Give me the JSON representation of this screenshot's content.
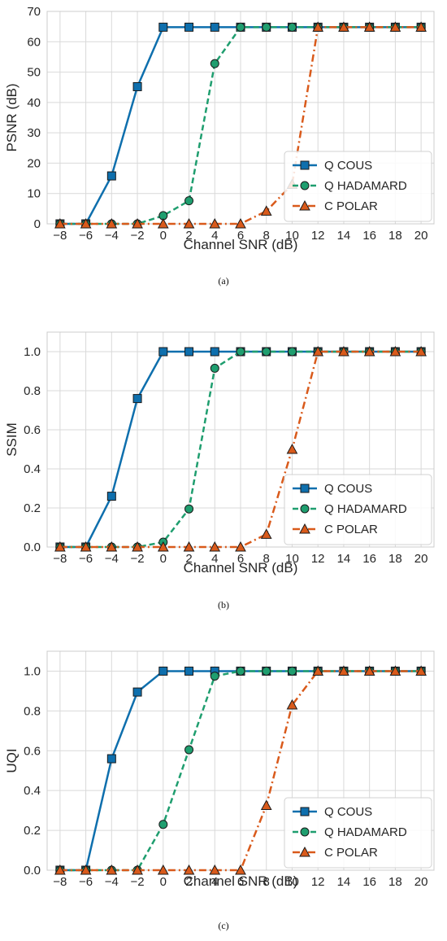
{
  "chart_data": [
    {
      "type": "line",
      "caption": "(a)",
      "xlabel": "Channel SNR (dB)",
      "ylabel": "PSNR (dB)",
      "x": [
        -8,
        -6,
        -4,
        -2,
        0,
        2,
        4,
        6,
        8,
        10,
        12,
        14,
        16,
        18,
        20
      ],
      "xticks": [
        "−8",
        "−6",
        "−4",
        "−2",
        "0",
        "2",
        "4",
        "6",
        "8",
        "10",
        "12",
        "14",
        "16",
        "18",
        "20"
      ],
      "ylim": [
        0,
        70
      ],
      "yticks": [
        0,
        10,
        20,
        30,
        40,
        50,
        60,
        70
      ],
      "ytick_labels": [
        "0",
        "10",
        "20",
        "30",
        "40",
        "50",
        "60",
        "70"
      ],
      "grid": true,
      "legend_position": "lower-right",
      "series": [
        {
          "name": "Q COUS",
          "color": "#0e6fad",
          "style": "solid",
          "marker": "square",
          "values": [
            0,
            0,
            15.8,
            45.2,
            64.8,
            64.8,
            64.8,
            64.8,
            64.8,
            64.8,
            64.8,
            64.8,
            64.8,
            64.8,
            64.8
          ]
        },
        {
          "name": "Q HADAMARD",
          "color": "#1f9e6f",
          "style": "dashed",
          "marker": "circle",
          "values": [
            0,
            0,
            0,
            0,
            2.7,
            7.6,
            52.8,
            64.8,
            64.8,
            64.8,
            64.8,
            64.8,
            64.8,
            64.8,
            64.8
          ]
        },
        {
          "name": "C POLAR",
          "color": "#d95a1b",
          "style": "dashdot",
          "marker": "triangle",
          "values": [
            0,
            0,
            0,
            0,
            0,
            0,
            0,
            0,
            4.2,
            13.0,
            64.8,
            64.8,
            64.8,
            64.8,
            64.8
          ]
        }
      ]
    },
    {
      "type": "line",
      "caption": "(b)",
      "xlabel": "Channel SNR (dB)",
      "ylabel": "SSIM",
      "x": [
        -8,
        -6,
        -4,
        -2,
        0,
        2,
        4,
        6,
        8,
        10,
        12,
        14,
        16,
        18,
        20
      ],
      "xticks": [
        "−8",
        "−6",
        "−4",
        "−2",
        "0",
        "2",
        "4",
        "6",
        "8",
        "10",
        "12",
        "14",
        "16",
        "18",
        "20"
      ],
      "ylim": [
        0,
        1.1
      ],
      "yticks": [
        0,
        0.2,
        0.4,
        0.6,
        0.8,
        1.0
      ],
      "ytick_labels": [
        "0.0",
        "0.2",
        "0.4",
        "0.6",
        "0.8",
        "1.0"
      ],
      "grid": true,
      "legend_position": "lower-right",
      "series": [
        {
          "name": "Q COUS",
          "color": "#0e6fad",
          "style": "solid",
          "marker": "square",
          "values": [
            0,
            0,
            0.26,
            0.76,
            1.0,
            1.0,
            1.0,
            1.0,
            1.0,
            1.0,
            1.0,
            1.0,
            1.0,
            1.0,
            1.0
          ]
        },
        {
          "name": "Q HADAMARD",
          "color": "#1f9e6f",
          "style": "dashed",
          "marker": "circle",
          "values": [
            0,
            0,
            0,
            0,
            0.025,
            0.195,
            0.915,
            1.0,
            1.0,
            1.0,
            1.0,
            1.0,
            1.0,
            1.0,
            1.0
          ]
        },
        {
          "name": "C POLAR",
          "color": "#d95a1b",
          "style": "dashdot",
          "marker": "triangle",
          "values": [
            0,
            0,
            0,
            0,
            0,
            0,
            0,
            0,
            0.065,
            0.5,
            1.0,
            1.0,
            1.0,
            1.0,
            1.0
          ]
        }
      ]
    },
    {
      "type": "line",
      "caption": "(c)",
      "xlabel": "Channel SNR (dB)",
      "ylabel": "UQI",
      "x": [
        -8,
        -6,
        -4,
        -2,
        0,
        2,
        4,
        6,
        8,
        10,
        12,
        14,
        16,
        18,
        20
      ],
      "xticks": [
        "−8",
        "−6",
        "−4",
        "−2",
        "0",
        "2",
        "4",
        "6",
        "8",
        "10",
        "12",
        "14",
        "16",
        "18",
        "20"
      ],
      "ylim": [
        0,
        1.1
      ],
      "yticks": [
        0,
        0.2,
        0.4,
        0.6,
        0.8,
        1.0
      ],
      "ytick_labels": [
        "0.0",
        "0.2",
        "0.4",
        "0.6",
        "0.8",
        "1.0"
      ],
      "grid": true,
      "legend_position": "lower-right",
      "series": [
        {
          "name": "Q COUS",
          "color": "#0e6fad",
          "style": "solid",
          "marker": "square",
          "values": [
            0,
            0,
            0.56,
            0.895,
            1.0,
            1.0,
            1.0,
            1.0,
            1.0,
            1.0,
            1.0,
            1.0,
            1.0,
            1.0,
            1.0
          ]
        },
        {
          "name": "Q HADAMARD",
          "color": "#1f9e6f",
          "style": "dashed",
          "marker": "circle",
          "values": [
            0,
            0,
            0,
            0,
            0.23,
            0.605,
            0.975,
            1.0,
            1.0,
            1.0,
            1.0,
            1.0,
            1.0,
            1.0,
            1.0
          ]
        },
        {
          "name": "C POLAR",
          "color": "#d95a1b",
          "style": "dashdot",
          "marker": "triangle",
          "values": [
            0,
            0,
            0,
            0,
            0,
            0,
            0,
            0,
            0.325,
            0.83,
            1.0,
            1.0,
            1.0,
            1.0,
            1.0
          ]
        }
      ]
    }
  ]
}
